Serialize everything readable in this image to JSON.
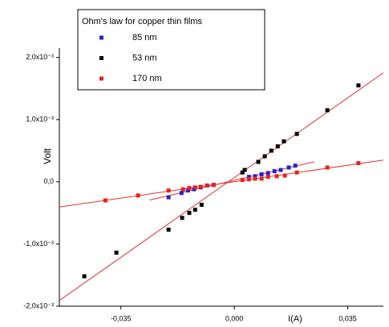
{
  "chart_data": {
    "type": "scatter",
    "legend_title": "Ohm's law for copper thin films",
    "xlabel": "I(A)",
    "ylabel": "Volt",
    "xlim": [
      -0.054,
      0.046
    ],
    "ylim": [
      -0.002,
      0.00215
    ],
    "xticks": [
      {
        "value": -0.035,
        "label": "-0,035"
      },
      {
        "value": 0,
        "label": "0,000"
      },
      {
        "value": 0.035,
        "label": "0,035"
      }
    ],
    "yticks": [
      {
        "value": -0.002,
        "label": "-2,0x10⁻³"
      },
      {
        "value": -0.001,
        "label": "-1,0x10⁻³"
      },
      {
        "value": 0,
        "label": "0,0"
      },
      {
        "value": 0.001,
        "label": "1,0x10⁻³"
      },
      {
        "value": 0.002,
        "label": "2,0x10⁻³"
      }
    ],
    "fit_line_color": "#e03030",
    "legend": "upper left",
    "series": [
      {
        "name": "85 nm",
        "color": "#2323d4",
        "x": [
          -0.0203,
          -0.0163,
          -0.0143,
          -0.0124,
          -0.0104,
          -0.0084,
          -0.0064,
          0.0045,
          0.0064,
          0.0084,
          0.0104,
          0.0124,
          0.0143,
          0.0168,
          0.0188
        ],
        "values": [
          -0.00025,
          -0.00018,
          -0.00014,
          -0.00012,
          -9e-05,
          -6e-05,
          -5e-05,
          8e-05,
          9e-05,
          0.00012,
          0.00014,
          0.00017,
          0.00019,
          0.00023,
          0.00026
        ]
      },
      {
        "name": "53 nm",
        "color": "#000000",
        "x": [
          -0.0463,
          -0.0364,
          -0.0203,
          -0.0161,
          -0.0139,
          -0.0121,
          -0.0101,
          0.0025,
          0.0032,
          0.0074,
          0.0094,
          0.0114,
          0.0134,
          0.0153,
          0.0193,
          0.0287,
          0.0383
        ],
        "values": [
          -0.00152,
          -0.00114,
          -0.00077,
          -0.00058,
          -0.0005,
          -0.00045,
          -0.00037,
          0.00015,
          0.00019,
          0.00032,
          0.00041,
          0.0005,
          0.00057,
          0.00065,
          0.00077,
          0.00115,
          0.00155
        ]
      },
      {
        "name": "170 nm",
        "color": "#e42222",
        "x": [
          -0.0398,
          -0.0297,
          -0.0203,
          -0.0158,
          -0.0139,
          -0.0121,
          -0.0104,
          -0.0084,
          -0.0064,
          0.0025,
          0.0045,
          0.0064,
          0.0084,
          0.0104,
          0.0131,
          0.0156,
          0.0193,
          0.0287,
          0.0383
        ],
        "values": [
          -0.0003,
          -0.00022,
          -0.00014,
          -0.00012,
          -0.0001,
          -9e-05,
          -8e-05,
          -6e-05,
          -5e-05,
          3e-05,
          4e-05,
          5e-05,
          5e-05,
          8e-05,
          9e-05,
          0.0001,
          0.00015,
          0.00023,
          0.0003
        ]
      }
    ]
  }
}
